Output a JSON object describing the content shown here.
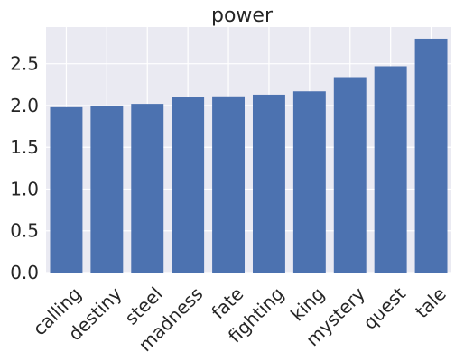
{
  "chart_data": {
    "type": "bar",
    "title": "power",
    "xlabel": "",
    "ylabel": "",
    "categories": [
      "calling",
      "destiny",
      "steel",
      "madness",
      "fate",
      "fighting",
      "king",
      "mystery",
      "quest",
      "tale"
    ],
    "values": [
      1.98,
      2.0,
      2.02,
      2.1,
      2.11,
      2.13,
      2.17,
      2.34,
      2.47,
      2.8
    ],
    "ylim": [
      0,
      2.94
    ],
    "yticks": [
      "0.0",
      "0.5",
      "1.0",
      "1.5",
      "2.0",
      "2.5"
    ],
    "ytick_values": [
      0,
      0.5,
      1.0,
      1.5,
      2.0,
      2.5
    ],
    "grid": true,
    "legend": "none",
    "colors": {
      "bar": "#4c72b0",
      "plot_background": "#eaeaf2",
      "grid": "#ffffff",
      "text": "#262626"
    }
  }
}
